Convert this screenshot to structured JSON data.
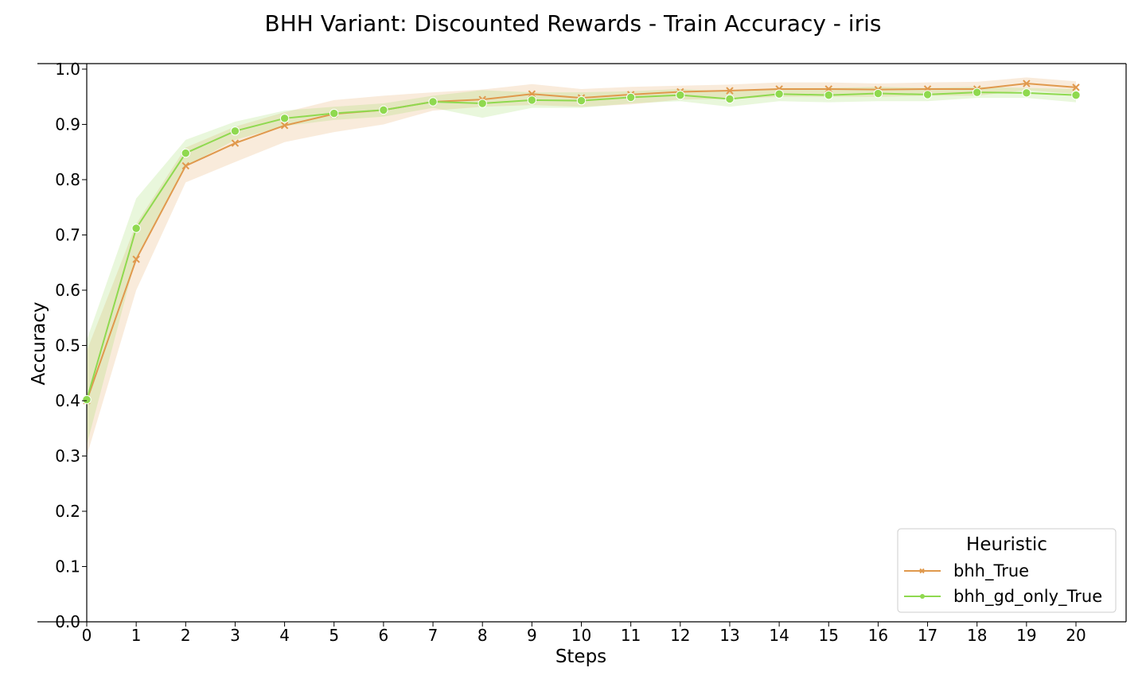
{
  "chart_data": {
    "type": "line",
    "title": "BHH Variant: Discounted Rewards - Train Accuracy - iris",
    "xlabel": "Steps",
    "ylabel": "Accuracy",
    "x": [
      0,
      1,
      2,
      3,
      4,
      5,
      6,
      7,
      8,
      9,
      10,
      11,
      12,
      13,
      14,
      15,
      16,
      17,
      18,
      19,
      20
    ],
    "xlim": [
      0,
      21
    ],
    "ylim": [
      0.0,
      1.01
    ],
    "xticks": [
      "0",
      "1",
      "2",
      "3",
      "4",
      "5",
      "6",
      "7",
      "8",
      "9",
      "10",
      "11",
      "12",
      "13",
      "14",
      "15",
      "16",
      "17",
      "18",
      "19",
      "20"
    ],
    "yticks": [
      "0.0",
      "0.1",
      "0.2",
      "0.3",
      "0.4",
      "0.5",
      "0.6",
      "0.7",
      "0.8",
      "0.9",
      "1.0"
    ],
    "legend": {
      "title": "Heuristic",
      "placement": "lower-right"
    },
    "series": [
      {
        "name": "bhh_True",
        "color": "#e0994d",
        "marker": "x",
        "values": [
          0.4,
          0.656,
          0.825,
          0.866,
          0.898,
          0.919,
          0.926,
          0.941,
          0.945,
          0.955,
          0.948,
          0.954,
          0.959,
          0.961,
          0.964,
          0.964,
          0.963,
          0.964,
          0.964,
          0.974,
          0.967
        ],
        "lower": [
          0.3,
          0.6,
          0.795,
          0.832,
          0.868,
          0.886,
          0.9,
          0.925,
          0.932,
          0.935,
          0.932,
          0.936,
          0.945,
          0.946,
          0.95,
          0.95,
          0.95,
          0.952,
          0.952,
          0.962,
          0.955
        ],
        "upper": [
          0.49,
          0.72,
          0.858,
          0.896,
          0.922,
          0.944,
          0.952,
          0.958,
          0.963,
          0.973,
          0.964,
          0.968,
          0.97,
          0.972,
          0.976,
          0.976,
          0.974,
          0.976,
          0.977,
          0.985,
          0.978
        ]
      },
      {
        "name": "bhh_gd_only_True",
        "color": "#8fd94f",
        "marker": "o",
        "values": [
          0.402,
          0.712,
          0.848,
          0.888,
          0.911,
          0.92,
          0.926,
          0.941,
          0.938,
          0.944,
          0.943,
          0.949,
          0.953,
          0.946,
          0.955,
          0.953,
          0.956,
          0.954,
          0.958,
          0.957,
          0.953
        ],
        "lower": [
          0.32,
          0.66,
          0.824,
          0.872,
          0.897,
          0.908,
          0.914,
          0.93,
          0.912,
          0.93,
          0.93,
          0.938,
          0.942,
          0.932,
          0.942,
          0.94,
          0.942,
          0.942,
          0.948,
          0.948,
          0.94
        ],
        "upper": [
          0.51,
          0.766,
          0.872,
          0.905,
          0.925,
          0.932,
          0.938,
          0.952,
          0.962,
          0.958,
          0.958,
          0.96,
          0.964,
          0.96,
          0.966,
          0.966,
          0.968,
          0.966,
          0.968,
          0.966,
          0.964
        ]
      }
    ]
  }
}
